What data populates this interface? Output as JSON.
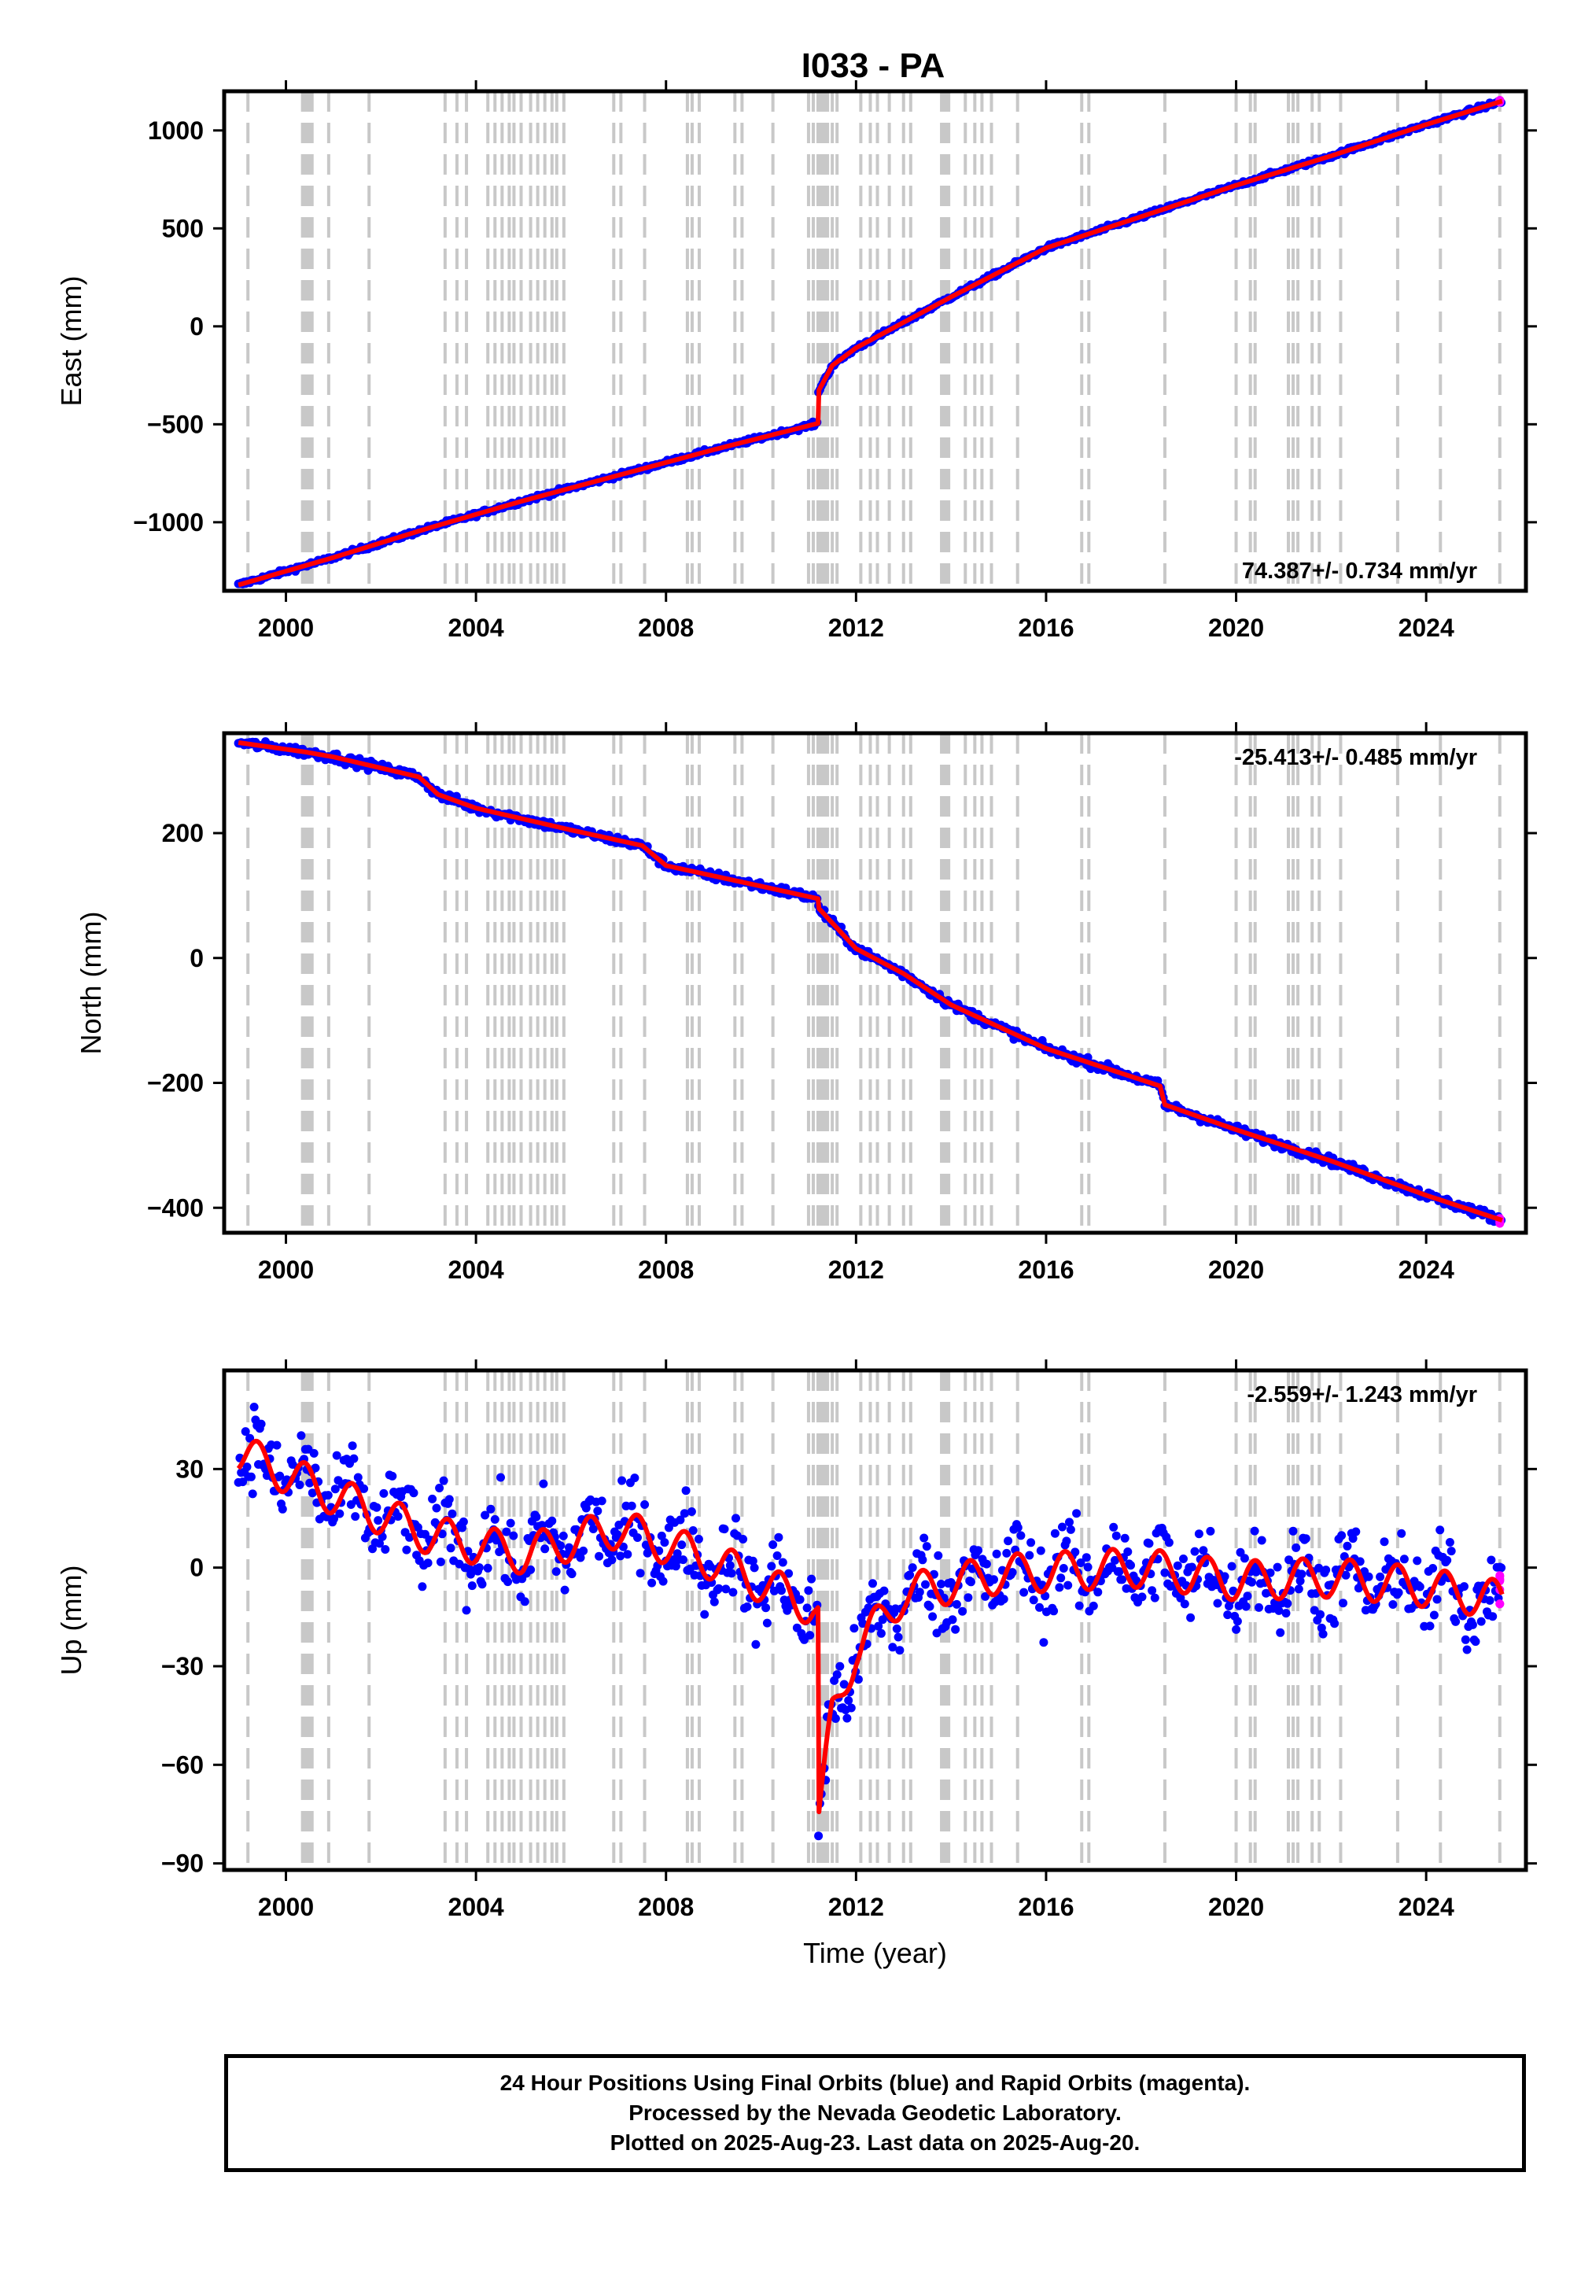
{
  "title": "I033 - PA",
  "colors": {
    "final_orbits": "#0000ff",
    "rapid_orbits": "#ff00ff",
    "model": "#ff0000",
    "event_lines": "#c8c8c8"
  },
  "xaxis": {
    "label": "Time (year)",
    "range": [
      1998.7,
      2026.1
    ],
    "ticks": [
      2000,
      2004,
      2008,
      2012,
      2016,
      2020,
      2024
    ],
    "tick_labels": [
      "2000",
      "2004",
      "2008",
      "2012",
      "2016",
      "2020",
      "2024"
    ]
  },
  "footer": {
    "line1": "24 Hour Positions Using Final Orbits (blue) and Rapid Orbits (magenta).",
    "line2": "Processed by the Nevada Geodetic Laboratory.",
    "line3": "Plotted on 2025-Aug-23. Last data on 2025-Aug-20."
  },
  "chart_data": [
    {
      "type": "scatter",
      "ylabel": "East (mm)",
      "ylim": [
        -1350,
        1200
      ],
      "yticks": [
        1000,
        500,
        0,
        -500,
        -1000
      ],
      "ytick_labels": [
        "1000",
        "500",
        "0",
        "−500",
        "−1000"
      ],
      "rate": "74.387+/- 0.734 mm/yr",
      "rate_position": "bottom-right",
      "trend_knots": [
        [
          1999.0,
          -1320
        ],
        [
          2001.0,
          -1180
        ],
        [
          2003.0,
          -1030
        ],
        [
          2005.0,
          -890
        ],
        [
          2007.0,
          -760
        ],
        [
          2009.0,
          -630
        ],
        [
          2011.2,
          -495
        ],
        [
          2011.21,
          -330
        ],
        [
          2011.5,
          -200
        ],
        [
          2012.0,
          -110
        ],
        [
          2013.0,
          20
        ],
        [
          2014.0,
          150
        ],
        [
          2016.0,
          400
        ],
        [
          2018.5,
          600
        ],
        [
          2020.0,
          720
        ],
        [
          2022.0,
          870
        ],
        [
          2024.0,
          1030
        ],
        [
          2025.6,
          1150
        ]
      ],
      "scatter": 8,
      "rapid_last": [
        2025.55,
        1150
      ]
    },
    {
      "type": "scatter",
      "ylabel": "North (mm)",
      "ylim": [
        -440,
        360
      ],
      "yticks": [
        200,
        0,
        -200,
        -400
      ],
      "ytick_labels": [
        "200",
        "0",
        "−200",
        "−400"
      ],
      "rate": "-25.413+/- 0.485 mm/yr",
      "rate_position": "top-right",
      "trend_knots": [
        [
          1999.0,
          345
        ],
        [
          2000.4,
          330
        ],
        [
          2001.0,
          322
        ],
        [
          2002.8,
          290
        ],
        [
          2003.2,
          262
        ],
        [
          2004.0,
          240
        ],
        [
          2006.0,
          205
        ],
        [
          2007.5,
          180
        ],
        [
          2008.0,
          148
        ],
        [
          2010.0,
          115
        ],
        [
          2011.2,
          95
        ],
        [
          2011.21,
          80
        ],
        [
          2012.0,
          15
        ],
        [
          2013.0,
          -25
        ],
        [
          2014.0,
          -75
        ],
        [
          2016.0,
          -145
        ],
        [
          2018.4,
          -205
        ],
        [
          2018.5,
          -235
        ],
        [
          2020.0,
          -275
        ],
        [
          2022.0,
          -325
        ],
        [
          2024.0,
          -380
        ],
        [
          2025.6,
          -420
        ]
      ],
      "scatter": 5,
      "rapid_last": [
        2025.55,
        -420
      ]
    },
    {
      "type": "scatter",
      "ylabel": "Up (mm)",
      "xlabel": "Time (year)",
      "ylim": [
        -92,
        60
      ],
      "yticks": [
        30,
        0,
        -30,
        -60,
        -90
      ],
      "ytick_labels": [
        "30",
        "0",
        "−30",
        "−60",
        "−90"
      ],
      "rate": "-2.559+/- 1.243 mm/yr",
      "rate_position": "top-right",
      "trend_knots": [
        [
          1999.0,
          35
        ],
        [
          2001.0,
          22
        ],
        [
          2003.0,
          10
        ],
        [
          2005.0,
          4
        ],
        [
          2007.0,
          12
        ],
        [
          2009.0,
          2
        ],
        [
          2011.1,
          -12
        ],
        [
          2011.2,
          -14
        ],
        [
          2011.21,
          -78
        ],
        [
          2011.5,
          -45
        ],
        [
          2012.0,
          -25
        ],
        [
          2013.0,
          -8
        ],
        [
          2015.0,
          -2
        ],
        [
          2018.0,
          0
        ],
        [
          2020.0,
          -4
        ],
        [
          2022.0,
          -3
        ],
        [
          2024.0,
          -6
        ],
        [
          2025.6,
          -10
        ]
      ],
      "seasonal_amp": 6,
      "scatter": 9,
      "rapid_last": [
        2025.55,
        -6
      ]
    }
  ],
  "event_lines": [
    1999.2,
    2000.35,
    2000.4,
    2000.45,
    2000.5,
    2000.55,
    2000.9,
    2001.75,
    2003.35,
    2003.6,
    2003.8,
    2004.25,
    2004.4,
    2004.55,
    2004.7,
    2004.8,
    2004.95,
    2005.15,
    2005.3,
    2005.45,
    2005.6,
    2005.7,
    2005.85,
    2006.9,
    2007.05,
    2007.55,
    2008.45,
    2008.55,
    2008.7,
    2009.45,
    2009.6,
    2010.25,
    2011.0,
    2011.1,
    2011.2,
    2011.25,
    2011.3,
    2011.35,
    2011.4,
    2011.5,
    2011.6,
    2012.1,
    2012.3,
    2012.45,
    2012.7,
    2013.0,
    2013.15,
    2013.8,
    2013.85,
    2013.9,
    2013.95,
    2014.3,
    2014.5,
    2014.65,
    2014.85,
    2015.4,
    2016.75,
    2016.9,
    2018.5,
    2020.0,
    2020.3,
    2020.4,
    2021.1,
    2021.2,
    2021.3,
    2021.6,
    2021.75,
    2022.2,
    2023.4,
    2024.3,
    2025.55
  ]
}
